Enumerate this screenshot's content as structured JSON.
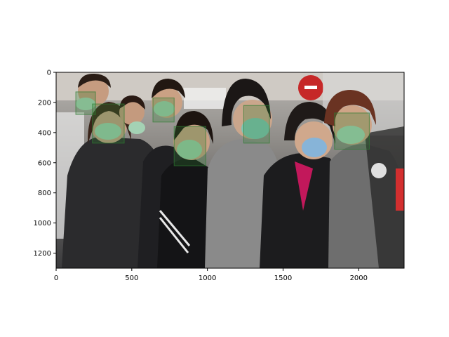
{
  "image_axes": {
    "x_ticks": [
      0,
      500,
      1000,
      1500,
      2000
    ],
    "y_ticks": [
      0,
      200,
      400,
      600,
      800,
      1000,
      1200
    ],
    "xlim": [
      0,
      2300
    ],
    "ylim": [
      1300,
      0
    ]
  },
  "detections": [
    {
      "label": "mask",
      "x": [
        130,
        260
      ],
      "y": [
        130,
        280
      ],
      "color": "#2e7d32"
    },
    {
      "label": "mask",
      "x": [
        240,
        450
      ],
      "y": [
        210,
        470
      ],
      "color": "#2e7d32"
    },
    {
      "label": "mask",
      "x": [
        640,
        780
      ],
      "y": [
        170,
        330
      ],
      "color": "#2e7d32"
    },
    {
      "label": "mask",
      "x": [
        780,
        990
      ],
      "y": [
        360,
        620
      ],
      "color": "#2e7d32"
    },
    {
      "label": "mask",
      "x": [
        1240,
        1410
      ],
      "y": [
        220,
        470
      ],
      "color": "#2e7d32"
    },
    {
      "label": "mask",
      "x": [
        1840,
        2070
      ],
      "y": [
        270,
        510
      ],
      "color": "#2e7d32"
    }
  ]
}
